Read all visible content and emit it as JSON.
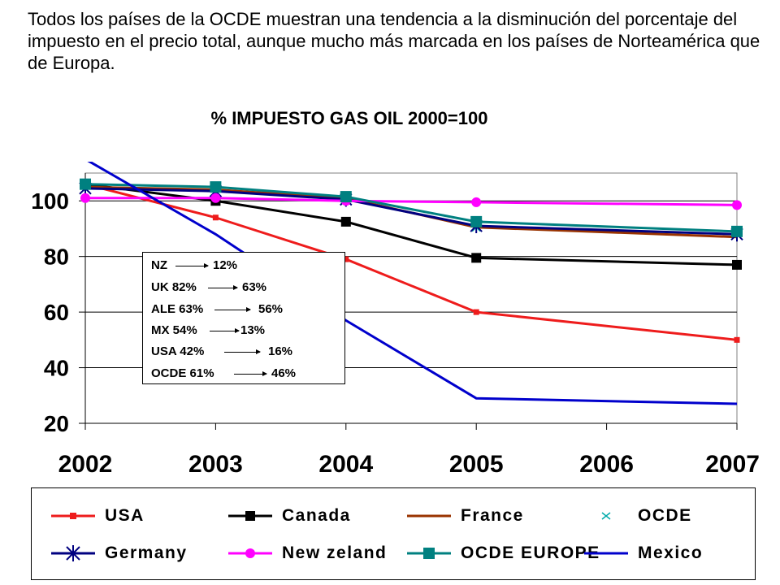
{
  "intro_text": "Todos los países de la OCDE muestran una tendencia a la disminución del porcentaje del impuesto en el precio total, aunque mucho más marcada en los países de Norteamérica que de Europa.",
  "chart_data": {
    "type": "line",
    "title": "% IMPUESTO GAS OIL 2000=100",
    "x": [
      "2002",
      "2003",
      "2004",
      "2005",
      "2006",
      "2007"
    ],
    "ylim": [
      20,
      110
    ],
    "yticks": [
      20,
      40,
      60,
      80,
      100
    ],
    "grid": true,
    "legend_position": "bottom",
    "series": [
      {
        "name": "USA",
        "color": "#ee1c1c",
        "marker": "square-small",
        "values": [
          106,
          94,
          79,
          60,
          null,
          50
        ]
      },
      {
        "name": "Canada",
        "color": "#000000",
        "marker": "square",
        "values": [
          106,
          100,
          92.5,
          79.5,
          null,
          77
        ]
      },
      {
        "name": "France",
        "color": "#993300",
        "marker": "none",
        "values": [
          105,
          104,
          101,
          90.5,
          null,
          87
        ]
      },
      {
        "name": "OCDE",
        "color": "#00aaaa",
        "marker": "x",
        "values": [
          104.5,
          103.5,
          100.5,
          90.5,
          null,
          88
        ]
      },
      {
        "name": "Germany",
        "color": "#000080",
        "marker": "star",
        "values": [
          104.5,
          103.5,
          100.5,
          91,
          null,
          88
        ]
      },
      {
        "name": "New zeland",
        "color": "#ff00ff",
        "marker": "circle",
        "values": [
          101,
          101,
          100,
          99.5,
          null,
          98.5
        ]
      },
      {
        "name": "OCDE EUROPE",
        "color": "#008080",
        "marker": "square",
        "values": [
          106,
          105,
          101.5,
          92.5,
          null,
          89
        ]
      },
      {
        "name": "Mexico",
        "color": "#0000cc",
        "marker": "none",
        "values": [
          115,
          88,
          57,
          29,
          null,
          27
        ]
      }
    ]
  },
  "note": {
    "rows": [
      {
        "a": "NZ",
        "b": "12%"
      },
      {
        "a": "UK 82%",
        "b": "63%"
      },
      {
        "a": "ALE 63%",
        "b": "56%"
      },
      {
        "a": "MX 54%",
        "b": "13%"
      },
      {
        "a": "USA 42%",
        "b": "16%"
      },
      {
        "a": "OCDE 61%",
        "b": "46%"
      }
    ]
  }
}
